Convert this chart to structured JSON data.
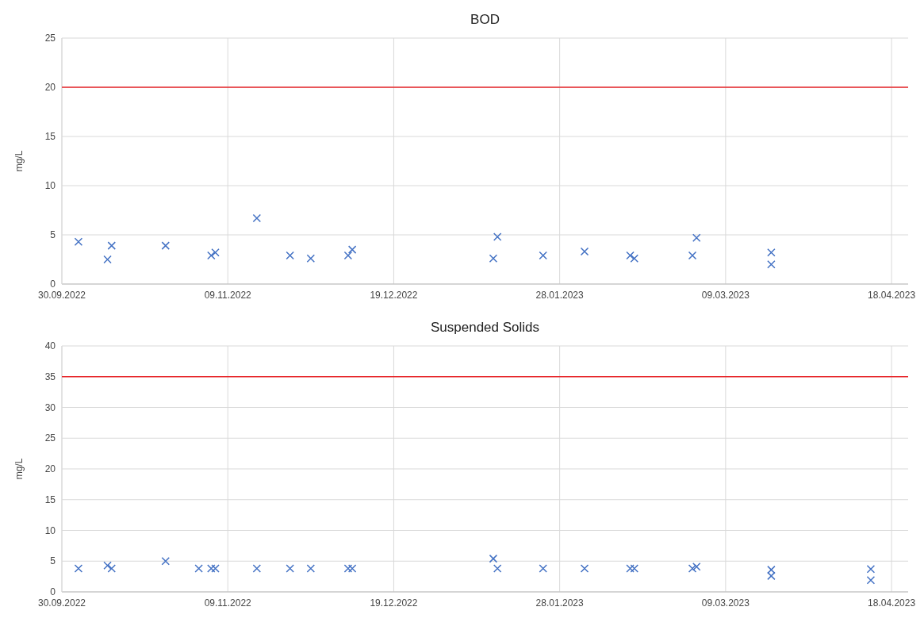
{
  "chart_data": [
    {
      "type": "scatter",
      "title": "BOD",
      "ylabel": "mg/L",
      "marker": "cross",
      "grid": true,
      "xlim": [
        "2022-09-30",
        "2023-04-22"
      ],
      "xticks": [
        {
          "value": "2022-09-30",
          "label": "30.09.2022"
        },
        {
          "value": "2022-11-09",
          "label": "09.11.2022"
        },
        {
          "value": "2022-12-19",
          "label": "19.12.2022"
        },
        {
          "value": "2023-01-28",
          "label": "28.01.2023"
        },
        {
          "value": "2023-03-09",
          "label": "09.03.2023"
        },
        {
          "value": "2023-04-18",
          "label": "18.04.2023"
        }
      ],
      "ylim": [
        0,
        25
      ],
      "yticks": [
        0,
        5,
        10,
        15,
        20,
        25
      ],
      "ref_lines": [
        {
          "axis": "y",
          "value": 20,
          "color": "#e8262a"
        }
      ],
      "series": [
        {
          "color": "#4472c4",
          "x": [
            "2022-10-04",
            "2022-10-11",
            "2022-10-12",
            "2022-10-25",
            "2022-11-05",
            "2022-11-06",
            "2022-11-16",
            "2022-11-24",
            "2022-11-29",
            "2022-12-08",
            "2022-12-09",
            "2023-01-12",
            "2023-01-13",
            "2023-01-24",
            "2023-02-03",
            "2023-02-14",
            "2023-02-15",
            "2023-03-01",
            "2023-03-02",
            "2023-03-20",
            "2023-03-20"
          ],
          "values": [
            4.3,
            2.5,
            3.9,
            3.9,
            2.9,
            3.2,
            6.7,
            2.9,
            2.6,
            2.9,
            3.5,
            2.6,
            4.8,
            2.9,
            3.3,
            2.9,
            2.6,
            2.9,
            4.7,
            3.2,
            2.0
          ]
        }
      ]
    },
    {
      "type": "scatter",
      "title": "Suspended Solids",
      "ylabel": "mg/L",
      "marker": "cross",
      "grid": true,
      "xlim": [
        "2022-09-30",
        "2023-04-22"
      ],
      "xticks": [
        {
          "value": "2022-09-30",
          "label": "30.09.2022"
        },
        {
          "value": "2022-11-09",
          "label": "09.11.2022"
        },
        {
          "value": "2022-12-19",
          "label": "19.12.2022"
        },
        {
          "value": "2023-01-28",
          "label": "28.01.2023"
        },
        {
          "value": "2023-03-09",
          "label": "09.03.2023"
        },
        {
          "value": "2023-04-18",
          "label": "18.04.2023"
        }
      ],
      "ylim": [
        0,
        40
      ],
      "yticks": [
        0,
        5,
        10,
        15,
        20,
        25,
        30,
        35,
        40
      ],
      "ref_lines": [
        {
          "axis": "y",
          "value": 35,
          "color": "#e8262a"
        }
      ],
      "series": [
        {
          "color": "#4472c4",
          "x": [
            "2022-10-04",
            "2022-10-11",
            "2022-10-12",
            "2022-10-25",
            "2022-11-02",
            "2022-11-05",
            "2022-11-06",
            "2022-11-16",
            "2022-11-24",
            "2022-11-29",
            "2022-12-08",
            "2022-12-09",
            "2023-01-12",
            "2023-01-13",
            "2023-01-24",
            "2023-02-03",
            "2023-02-14",
            "2023-02-15",
            "2023-03-01",
            "2023-03-02",
            "2023-03-20",
            "2023-03-20",
            "2023-04-13",
            "2023-04-13"
          ],
          "values": [
            3.8,
            4.3,
            3.8,
            5.0,
            3.8,
            3.8,
            3.8,
            3.8,
            3.8,
            3.8,
            3.8,
            3.8,
            5.4,
            3.8,
            3.8,
            3.8,
            3.8,
            3.8,
            3.8,
            4.1,
            3.6,
            2.6,
            3.7,
            1.9
          ]
        }
      ]
    }
  ]
}
